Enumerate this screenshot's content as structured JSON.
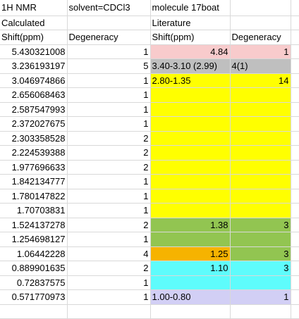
{
  "header": {
    "row1": [
      "1H NMR",
      "solvent=CDCl3",
      "molecule 17boat",
      ""
    ],
    "row2": [
      "Calculated",
      "",
      "Literature",
      ""
    ],
    "row3": [
      "Shift(ppm)",
      "Degeneracy",
      "Shift(ppm)",
      "Degeneracy"
    ]
  },
  "rows": [
    {
      "shift": "5.430321008",
      "deg": "1",
      "lit_shift": "4.84",
      "lit_deg": "1"
    },
    {
      "shift": "3.236193197",
      "deg": "5",
      "lit_shift": "3.40-3.10 (2.99)",
      "lit_deg": "4(1)"
    },
    {
      "shift": "3.046974866",
      "deg": "1",
      "lit_shift": "2.80-1.35",
      "lit_deg": "14"
    },
    {
      "shift": "2.656068463",
      "deg": "1",
      "lit_shift": "",
      "lit_deg": ""
    },
    {
      "shift": "2.587547993",
      "deg": "1",
      "lit_shift": "",
      "lit_deg": ""
    },
    {
      "shift": "2.372027675",
      "deg": "1",
      "lit_shift": "",
      "lit_deg": ""
    },
    {
      "shift": "2.303358528",
      "deg": "2",
      "lit_shift": "",
      "lit_deg": ""
    },
    {
      "shift": "2.224539388",
      "deg": "2",
      "lit_shift": "",
      "lit_deg": ""
    },
    {
      "shift": "1.977696633",
      "deg": "2",
      "lit_shift": "",
      "lit_deg": ""
    },
    {
      "shift": "1.842134777",
      "deg": "1",
      "lit_shift": "",
      "lit_deg": ""
    },
    {
      "shift": "1.780147822",
      "deg": "1",
      "lit_shift": "",
      "lit_deg": ""
    },
    {
      "shift": "1.70703831",
      "deg": "1",
      "lit_shift": "",
      "lit_deg": ""
    },
    {
      "shift": "1.524137278",
      "deg": "2",
      "lit_shift": "1.38",
      "lit_deg": "3"
    },
    {
      "shift": "1.254698127",
      "deg": "1",
      "lit_shift": "",
      "lit_deg": ""
    },
    {
      "shift": "1.06442228",
      "deg": "4",
      "lit_shift": "1.25",
      "lit_deg": "3"
    },
    {
      "shift": "0.889901635",
      "deg": "2",
      "lit_shift": "1.10",
      "lit_deg": "3"
    },
    {
      "shift": "0.72837575",
      "deg": "1",
      "lit_shift": "",
      "lit_deg": ""
    },
    {
      "shift": "0.571770973",
      "deg": "1",
      "lit_shift": "1.00-0.80",
      "lit_deg": "1"
    }
  ],
  "colors": {
    "pink": "#f8cbcc",
    "gray": "#bfbfbf",
    "yellow": "#ffff00",
    "green": "#92c551",
    "orange": "#f6b300",
    "cyan": "#5efcfc",
    "lavender": "#d2cff5"
  }
}
